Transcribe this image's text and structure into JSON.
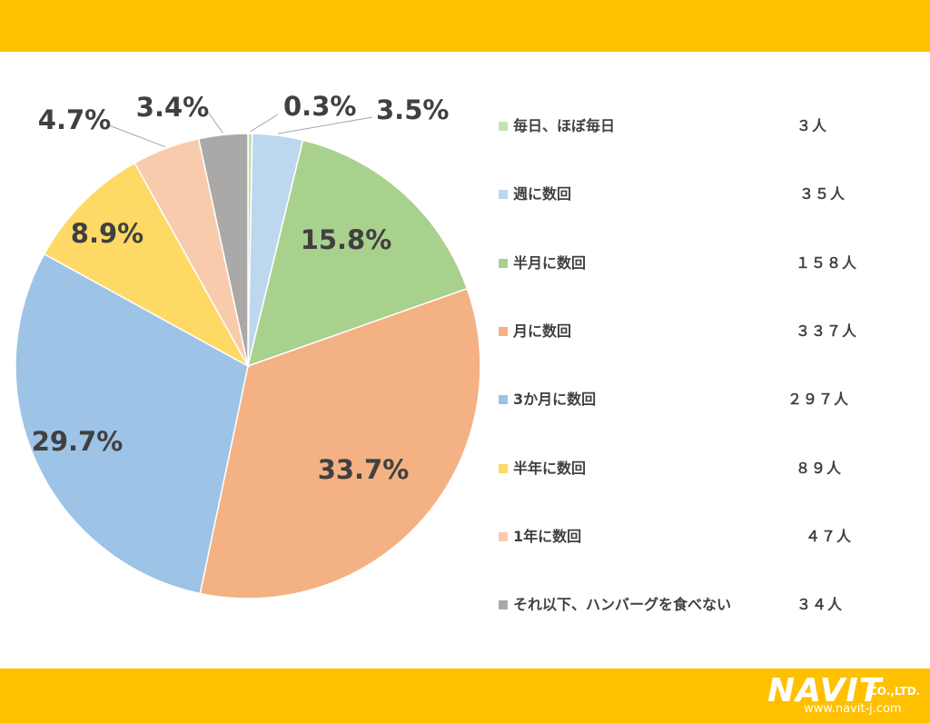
{
  "colors": {
    "band": "#FFC000",
    "label": "#404040"
  },
  "chart_data": {
    "type": "pie",
    "slices": [
      {
        "label": "毎日、ほぼ毎日",
        "count": "３人",
        "value": 0.3,
        "pct_label": "0.3%",
        "color": "#C5E0B4"
      },
      {
        "label": "週に数回",
        "count": "３５人",
        "value": 3.5,
        "pct_label": "3.5%",
        "color": "#BDD7EE"
      },
      {
        "label": "半月に数回",
        "count": "１５８人",
        "value": 15.8,
        "pct_label": "15.8%",
        "color": "#A9D18E"
      },
      {
        "label": "月に数回",
        "count": "３３７人",
        "value": 33.7,
        "pct_label": "33.7%",
        "color": "#F4B183"
      },
      {
        "label": "3か月に数回",
        "count": "２９７人",
        "value": 29.7,
        "pct_label": "29.7%",
        "color": "#9DC3E6"
      },
      {
        "label": "半年に数回",
        "count": "８９人",
        "value": 8.9,
        "pct_label": "8.9%",
        "color": "#FFD966"
      },
      {
        "label": "1年に数回",
        "count": "４７人",
        "value": 4.7,
        "pct_label": "4.7%",
        "color": "#F8CBAD"
      },
      {
        "label": "それ以下、ハンバーグを食べない",
        "count": "３４人",
        "value": 3.4,
        "pct_label": "3.4%",
        "color": "#ABA8A8"
      }
    ],
    "legend_position": "right"
  },
  "logo": {
    "brand": "NAVIT",
    "suffix": "CO.,LTD.",
    "url": "www.navit-j.com"
  }
}
